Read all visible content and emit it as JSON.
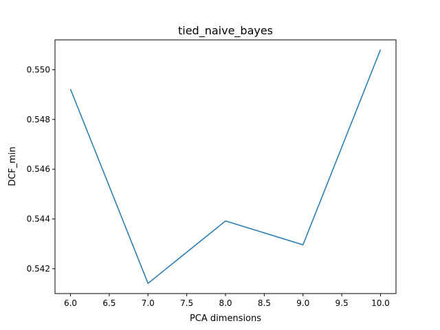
{
  "chart_data": {
    "type": "line",
    "title": "tied_naive_bayes",
    "xlabel": "PCA dimensions",
    "ylabel": "DCF_min",
    "xlim": [
      5.8,
      10.2
    ],
    "ylim": [
      0.541,
      0.5512
    ],
    "xticks": [
      "6.0",
      "6.5",
      "7.0",
      "7.5",
      "8.0",
      "8.5",
      "9.0",
      "9.5",
      "10.0"
    ],
    "yticks": [
      "0.542",
      "0.544",
      "0.546",
      "0.548",
      "0.550"
    ],
    "grid": false,
    "series": [
      {
        "x": [
          6,
          7,
          8,
          9,
          10
        ],
        "y": [
          0.54922,
          0.54141,
          0.54392,
          0.54296,
          0.55081
        ],
        "color": "#1f77b4"
      }
    ]
  }
}
